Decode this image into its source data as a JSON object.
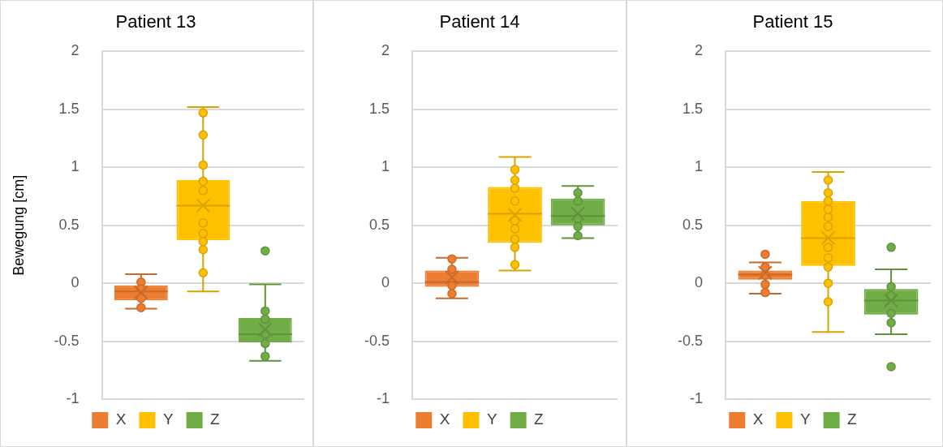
{
  "chart_data": [
    {
      "type": "box",
      "title": "Patient 13",
      "ylabel": "Bewegung [cm]",
      "categories": [
        null
      ],
      "ylim": [
        -1,
        2
      ],
      "yticks": [
        -1,
        -0.5,
        0,
        0.5,
        1,
        1.5,
        2
      ],
      "grid": "y",
      "legend": "bottom",
      "tick_labels": "y",
      "series": [
        {
          "name": "X",
          "color": "#ed7d31",
          "boxes": [
            {
              "low": -0.22,
              "q1": -0.148,
              "median": -0.07,
              "q3": -0.019,
              "high": 0.078,
              "mean": -0.08
            }
          ]
        },
        {
          "name": "Y",
          "color": "#ffc000",
          "boxes": [
            {
              "low": -0.07,
              "q1": 0.37,
              "median": 0.67,
              "q3": 0.89,
              "high": 1.52,
              "mean": 0.67
            }
          ]
        },
        {
          "name": "Z",
          "color": "#70ad47",
          "boxes": [
            {
              "low": -0.67,
              "q1": -0.51,
              "median": -0.44,
              "q3": -0.3,
              "high": -0.01,
              "mean": -0.4,
              "outliers": [
                0.28
              ]
            }
          ]
        },
        {
          "type": "scatter",
          "marker": "circle",
          "color": "#ed7d31",
          "x": [
            null,
            null,
            null,
            null
          ],
          "values": [
            0.01,
            -0.05,
            -0.13,
            -0.21
          ]
        },
        {
          "type": "scatter",
          "marker": "circle",
          "color": "#ffc000",
          "x": [
            null,
            null,
            null,
            null,
            null,
            null,
            null,
            null,
            null,
            null
          ],
          "values": [
            1.47,
            1.28,
            1.02,
            0.88,
            0.8,
            0.52,
            0.43,
            0.36,
            0.29,
            0.09
          ]
        },
        {
          "type": "scatter",
          "marker": "circle",
          "color": "#70ad47",
          "x": [
            null,
            null,
            null,
            null,
            null
          ],
          "values": [
            -0.24,
            -0.31,
            -0.44,
            -0.52,
            -0.63
          ]
        }
      ]
    },
    {
      "type": "box",
      "title": "Patient 14",
      "categories": [
        null
      ],
      "ylim": [
        -1,
        2
      ],
      "yticks": [
        -1,
        -0.5,
        0,
        0.5,
        1,
        1.5,
        2
      ],
      "grid": "y",
      "legend": "bottom",
      "tick_labels": "y",
      "series": [
        {
          "name": "X",
          "color": "#ed7d31",
          "boxes": [
            {
              "low": -0.13,
              "q1": -0.03,
              "median": 0.01,
              "q3": 0.11,
              "high": 0.22,
              "mean": 0.05
            }
          ]
        },
        {
          "name": "Y",
          "color": "#ffc000",
          "boxes": [
            {
              "low": 0.11,
              "q1": 0.35,
              "median": 0.6,
              "q3": 0.83,
              "high": 1.09,
              "mean": 0.59
            }
          ]
        },
        {
          "name": "Z",
          "color": "#70ad47",
          "boxes": [
            {
              "low": 0.39,
              "q1": 0.5,
              "median": 0.58,
              "q3": 0.73,
              "high": 0.84,
              "mean": 0.6
            }
          ]
        },
        {
          "type": "scatter",
          "marker": "circle",
          "color": "#ed7d31",
          "x": [
            null,
            null,
            null,
            null
          ],
          "values": [
            0.21,
            0.12,
            -0.02,
            -0.09
          ]
        },
        {
          "type": "scatter",
          "marker": "circle",
          "color": "#ffc000",
          "x": [
            null,
            null,
            null,
            null,
            null,
            null,
            null,
            null,
            null
          ],
          "values": [
            0.98,
            0.89,
            0.82,
            0.71,
            0.54,
            0.47,
            0.38,
            0.31,
            0.16
          ]
        },
        {
          "type": "scatter",
          "marker": "circle",
          "color": "#70ad47",
          "x": [
            null,
            null,
            null,
            null,
            null
          ],
          "values": [
            0.78,
            0.71,
            0.56,
            0.49,
            0.41
          ]
        }
      ]
    },
    {
      "type": "box",
      "title": "Patient 15",
      "categories": [
        null
      ],
      "ylim": [
        -1,
        2
      ],
      "yticks": [
        -1,
        -0.5,
        0,
        0.5,
        1,
        1.5,
        2
      ],
      "grid": "y",
      "legend": "bottom",
      "tick_labels": "y",
      "series": [
        {
          "name": "X",
          "color": "#ed7d31",
          "boxes": [
            {
              "low": -0.09,
              "q1": 0.03,
              "median": 0.075,
              "q3": 0.11,
              "high": 0.18,
              "mean": 0.09,
              "outliers": [
                0.25
              ]
            }
          ]
        },
        {
          "name": "Y",
          "color": "#ffc000",
          "boxes": [
            {
              "low": -0.42,
              "q1": 0.15,
              "median": 0.39,
              "q3": 0.71,
              "high": 0.96,
              "mean": 0.39
            }
          ]
        },
        {
          "name": "Z",
          "color": "#70ad47",
          "boxes": [
            {
              "low": -0.44,
              "q1": -0.27,
              "median": -0.15,
              "q3": -0.05,
              "high": 0.12,
              "mean": -0.15,
              "outliers": [
                0.31,
                -0.72
              ]
            }
          ]
        },
        {
          "type": "scatter",
          "marker": "circle",
          "color": "#ed7d31",
          "x": [
            null,
            null,
            null,
            null
          ],
          "values": [
            0.14,
            0.07,
            -0.01,
            -0.08
          ]
        },
        {
          "type": "scatter",
          "marker": "circle",
          "color": "#ffc000",
          "x": [
            null,
            null,
            null,
            null,
            null,
            null,
            null,
            null,
            null,
            null,
            null
          ],
          "values": [
            0.89,
            0.78,
            0.71,
            0.64,
            0.57,
            0.49,
            0.31,
            0.22,
            0.14,
            0.0,
            -0.16
          ]
        },
        {
          "type": "scatter",
          "marker": "circle",
          "color": "#70ad47",
          "x": [
            null,
            null,
            null,
            null
          ],
          "values": [
            -0.03,
            -0.11,
            -0.26,
            -0.34
          ]
        }
      ]
    }
  ]
}
